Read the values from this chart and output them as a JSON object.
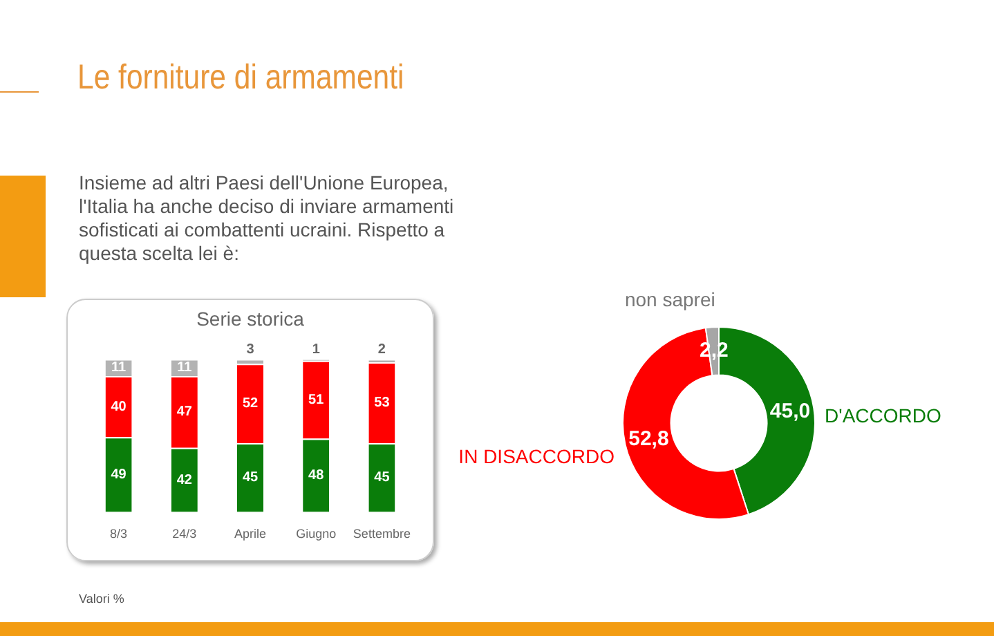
{
  "chart_data": [
    {
      "type": "other",
      "title": "Le forniture di armamenti",
      "subtitle": "Insieme ad altri Paesi dell'Unione Europea, l'Italia ha anche deciso di inviare armamenti sofisticati ai combattenti ucraini. Rispetto a questa scelta lei è:",
      "annotations": [
        "Valori %"
      ]
    },
    {
      "type": "bar",
      "title": "Serie storica",
      "categories": [
        "8/3",
        "24/3",
        "Aprile",
        "Giugno",
        "Settembre"
      ],
      "stacked": true,
      "grid": false,
      "legend": false,
      "tick_labels": "x",
      "data_labels": true,
      "series": [
        {
          "color": "#0a7d0a",
          "values": [
            49,
            42,
            45,
            48,
            45
          ]
        },
        {
          "color": "#ff0000",
          "values": [
            40,
            47,
            52,
            51,
            53
          ]
        },
        {
          "color": "#b3b3b3",
          "values": [
            11,
            11,
            3,
            1,
            2
          ]
        }
      ]
    },
    {
      "type": "donut",
      "categories": [
        "D'ACCORDO",
        "IN DISACCORDO",
        "non saprei"
      ],
      "values": [
        45.0,
        52.8,
        2.2
      ],
      "value_labels": [
        "45,0",
        "52,8",
        "2,2"
      ],
      "colors": [
        "#0a7d0a",
        "#ff0000",
        "#a6a6a6"
      ],
      "legend": false
    }
  ]
}
